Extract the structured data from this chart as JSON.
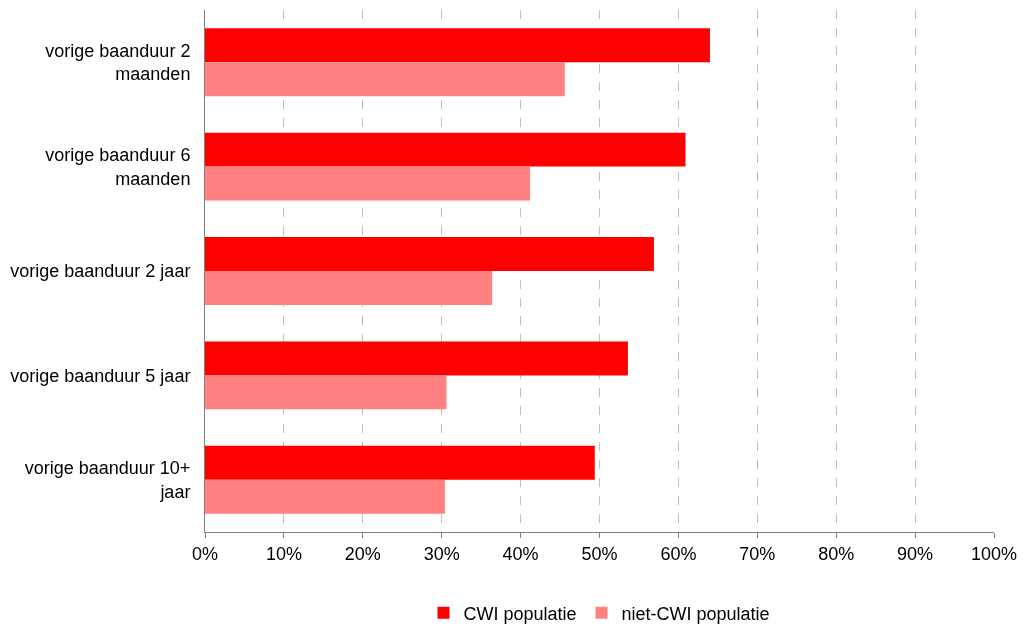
{
  "chart_data": {
    "type": "bar",
    "orientation": "horizontal",
    "categories": [
      "vorige baanduur 2 maanden",
      "vorige baanduur 6 maanden",
      "vorige baanduur 2 jaar",
      "vorige baanduur 5 jaar",
      "vorige baanduur 10+ jaar"
    ],
    "series": [
      {
        "name": "CWI populatie",
        "color": "#ff0000",
        "values": [
          64.0,
          60.9,
          56.9,
          53.6,
          49.4
        ]
      },
      {
        "name": "niet-CWI populatie",
        "color": "#ff8080",
        "values": [
          45.6,
          41.2,
          36.4,
          30.6,
          30.4
        ]
      }
    ],
    "xlim": [
      0,
      100
    ],
    "xticks": [
      {
        "value": 0,
        "label": "0%"
      },
      {
        "value": 10,
        "label": "10%"
      },
      {
        "value": 20,
        "label": "20%"
      },
      {
        "value": 30,
        "label": "30%"
      },
      {
        "value": 40,
        "label": "40%"
      },
      {
        "value": 50,
        "label": "50%"
      },
      {
        "value": 60,
        "label": "60%"
      },
      {
        "value": 70,
        "label": "70%"
      },
      {
        "value": 80,
        "label": "80%"
      },
      {
        "value": 90,
        "label": "90%"
      },
      {
        "value": 100,
        "label": "100%"
      }
    ],
    "grid": "x",
    "legend": "bottom"
  }
}
